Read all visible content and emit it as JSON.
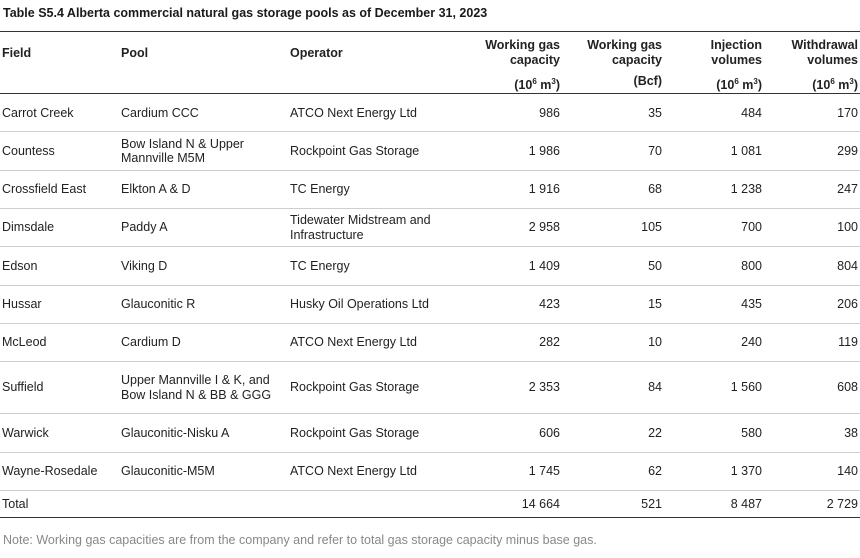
{
  "title": "Table S5.4  Alberta commercial natural gas storage pools as of December 31, 2023",
  "headers": {
    "field": "Field",
    "pool": "Pool",
    "operator": "Operator",
    "wg_m3": {
      "line1": "Working gas",
      "line2": "capacity",
      "unit_pre": "(10",
      "unit_exp": "6",
      "unit_post": " m",
      "unit_exp2": "3",
      "unit_close": ")"
    },
    "wg_bcf": {
      "line1": "Working gas",
      "line2": "capacity",
      "unit": "(Bcf)"
    },
    "inj": {
      "line1": "Injection",
      "line2": "volumes",
      "unit_pre": "(10",
      "unit_exp": "6",
      "unit_post": " m",
      "unit_exp2": "3",
      "unit_close": ")"
    },
    "wd": {
      "line1": "Withdrawal",
      "line2": "volumes",
      "unit_pre": "(10",
      "unit_exp": "6",
      "unit_post": " m",
      "unit_exp2": "3",
      "unit_close": ")"
    }
  },
  "rows": [
    {
      "field": "Carrot Creek",
      "pool": "Cardium CCC",
      "operator": "ATCO Next Energy Ltd",
      "wg_m3": "986",
      "wg_bcf": "35",
      "inj": "484",
      "wd": "170"
    },
    {
      "field": "Countess",
      "pool": "Bow Island N & Upper Mannville M5M",
      "operator": "Rockpoint Gas Storage",
      "wg_m3": "1 986",
      "wg_bcf": "70",
      "inj": "1 081",
      "wd": "299"
    },
    {
      "field": "Crossfield East",
      "pool": "Elkton A & D",
      "operator": "TC Energy",
      "wg_m3": "1 916",
      "wg_bcf": "68",
      "inj": "1 238",
      "wd": "247"
    },
    {
      "field": "Dimsdale",
      "pool": "Paddy A",
      "operator": "Tidewater Midstream and Infrastructure",
      "wg_m3": "2 958",
      "wg_bcf": "105",
      "inj": "700",
      "wd": "100"
    },
    {
      "field": "Edson",
      "pool": "Viking D",
      "operator": "TC Energy",
      "wg_m3": "1 409",
      "wg_bcf": "50",
      "inj": "800",
      "wd": "804"
    },
    {
      "field": "Hussar",
      "pool": "Glauconitic R",
      "operator": "Husky Oil Operations Ltd",
      "wg_m3": "423",
      "wg_bcf": "15",
      "inj": "435",
      "wd": "206"
    },
    {
      "field": "McLeod",
      "pool": "Cardium D",
      "operator": "ATCO Next Energy Ltd",
      "wg_m3": "282",
      "wg_bcf": "10",
      "inj": "240",
      "wd": "119"
    },
    {
      "field": "Suffield",
      "pool": "Upper Mannville I & K, and Bow Island N & BB & GGG",
      "operator": "Rockpoint Gas Storage",
      "wg_m3": "2 353",
      "wg_bcf": "84",
      "inj": "1 560",
      "wd": "608"
    },
    {
      "field": "Warwick",
      "pool": "Glauconitic-Nisku A",
      "operator": "Rockpoint Gas Storage",
      "wg_m3": "606",
      "wg_bcf": "22",
      "inj": "580",
      "wd": "38"
    },
    {
      "field": "Wayne-Rosedale",
      "pool": "Glauconitic-M5M",
      "operator": "ATCO Next Energy Ltd",
      "wg_m3": "1 745",
      "wg_bcf": "62",
      "inj": "1 370",
      "wd": "140"
    }
  ],
  "total": {
    "label": "Total",
    "wg_m3": "14 664",
    "wg_bcf": "521",
    "inj": "8 487",
    "wd": "2 729"
  },
  "note": "Note: Working gas capacities are from the company and refer to total gas storage capacity minus base gas."
}
